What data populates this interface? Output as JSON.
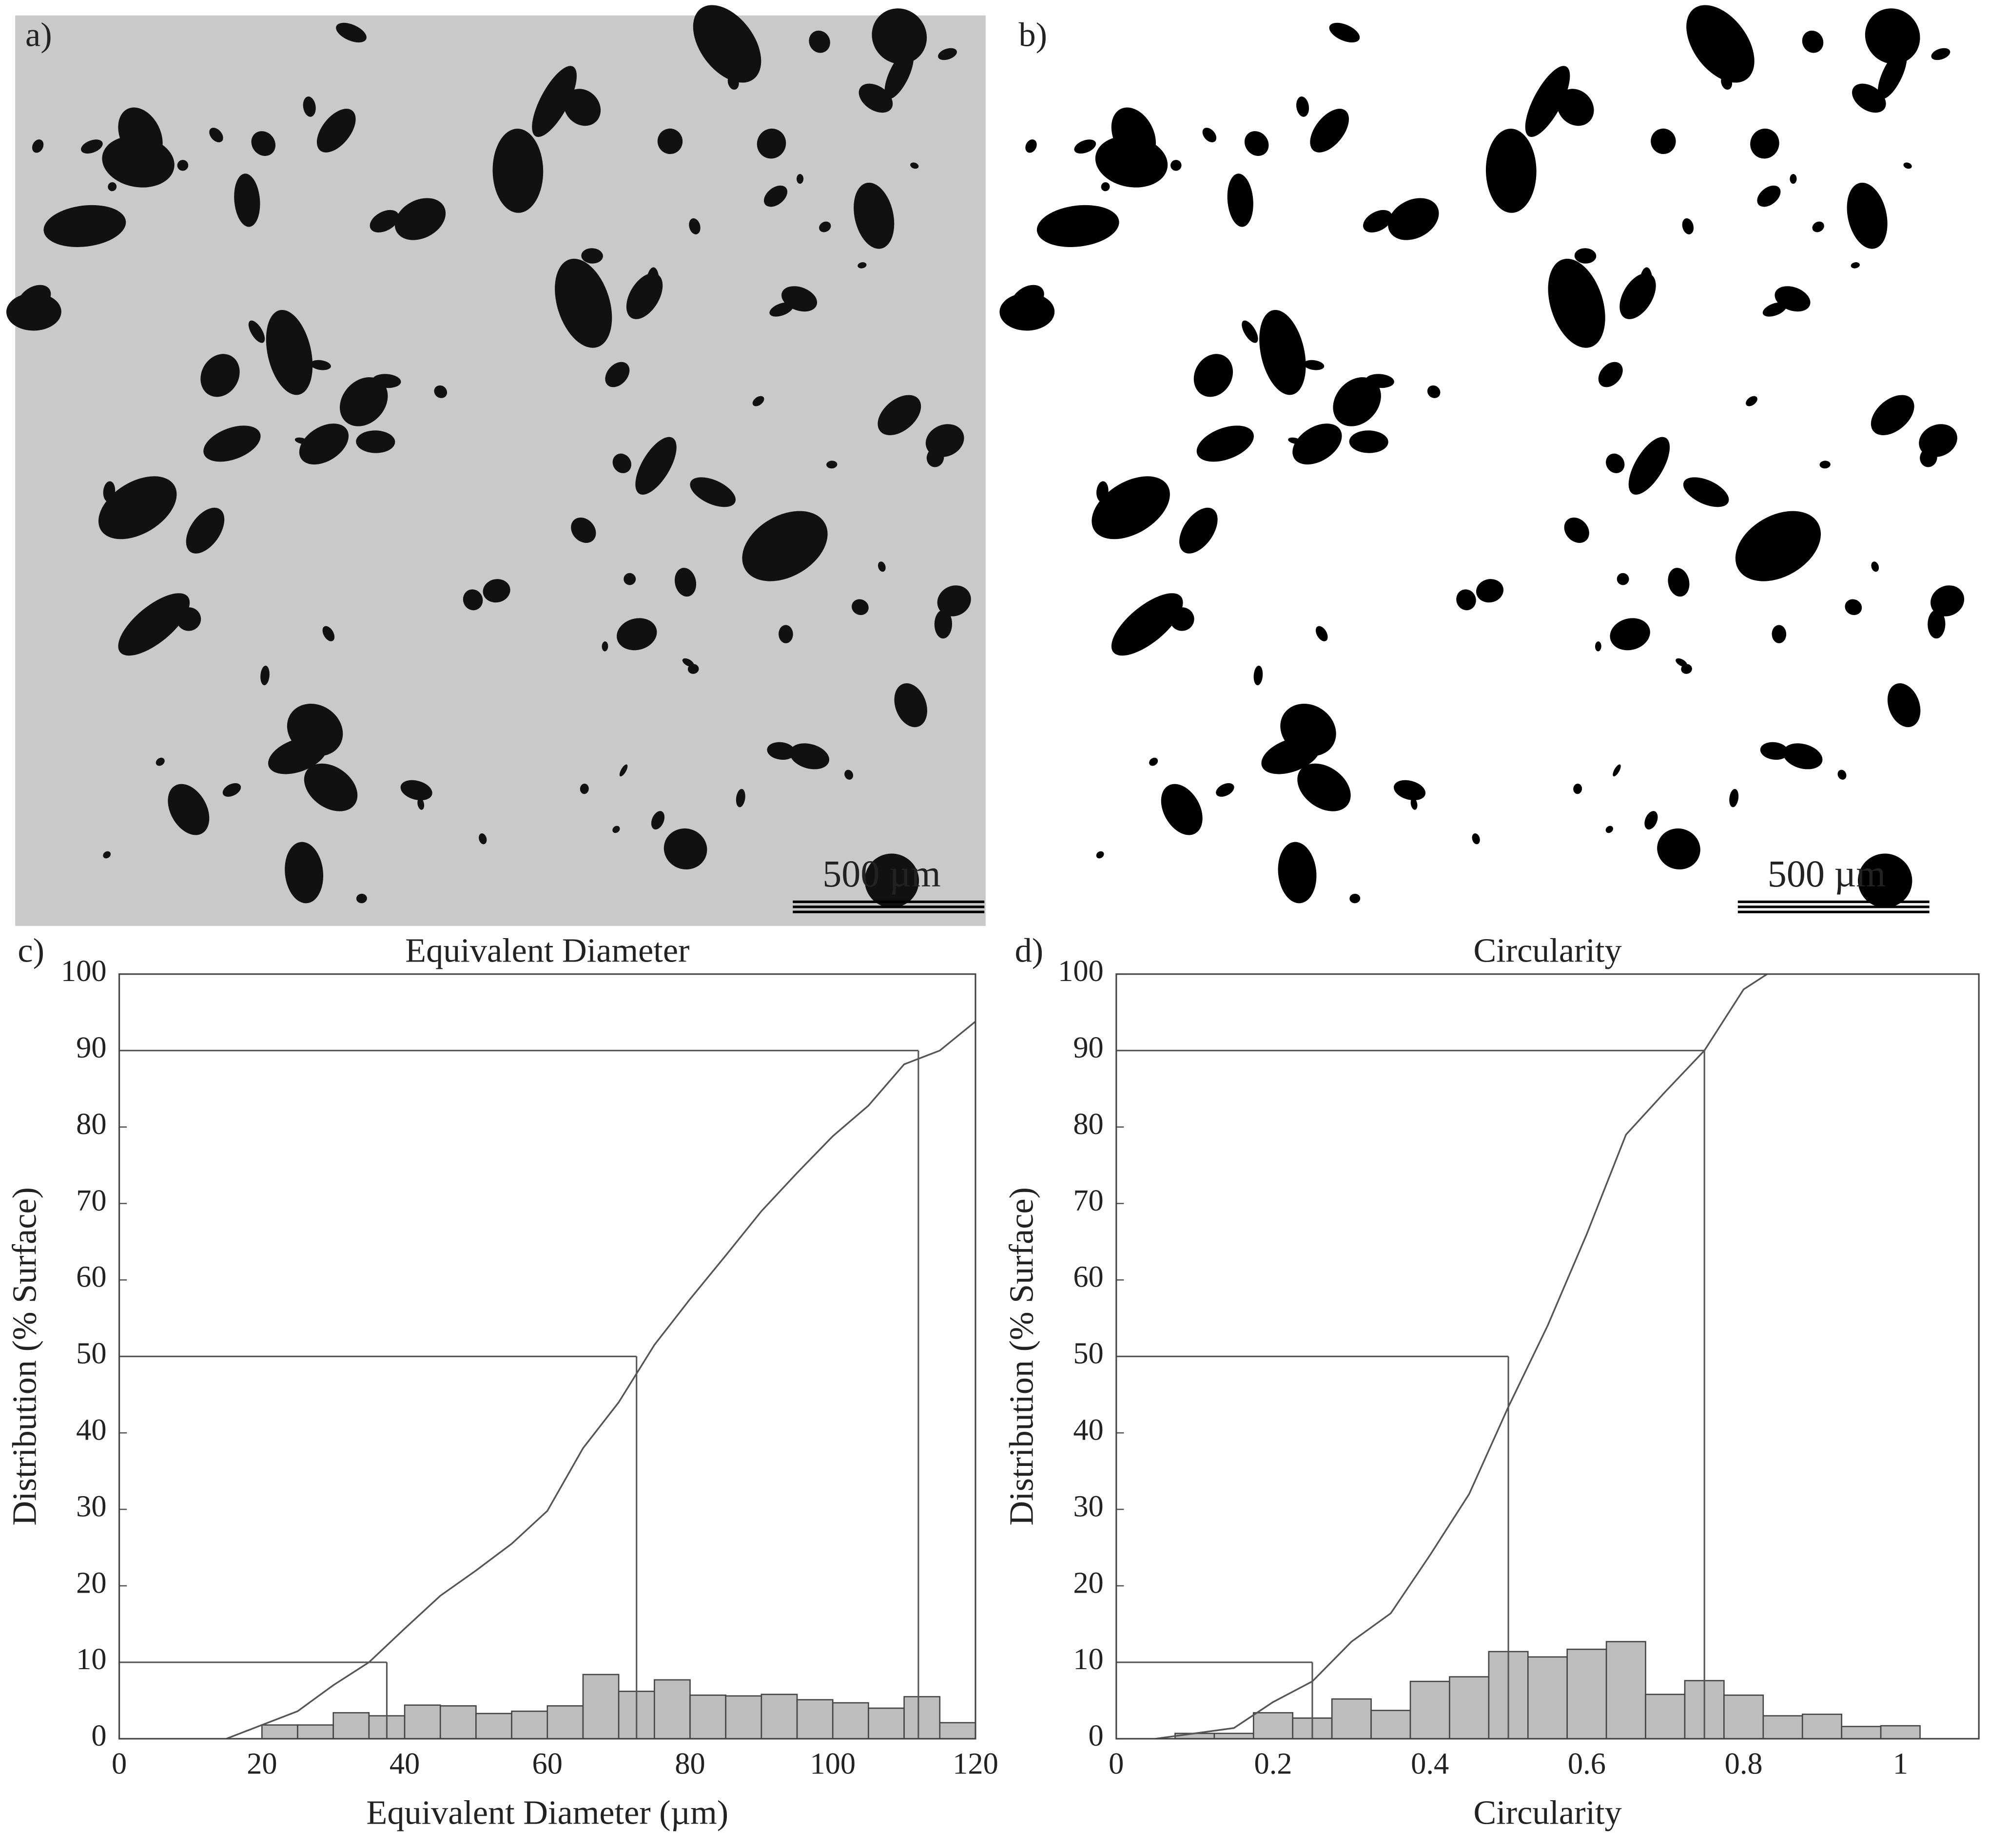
{
  "images": [
    {
      "label": "a)",
      "scale_bar": "500 µm"
    },
    {
      "label": "b)",
      "scale_bar": "500 µm"
    }
  ],
  "chart_data": [
    {
      "type": "histogram",
      "label": "c)",
      "title": "Equivalent Diameter",
      "x_label": "Equivalent Diameter (µm)",
      "y_label": "Distribution (% Surface)",
      "bins": [
        20,
        25,
        30,
        35,
        40,
        45,
        50,
        55,
        60,
        65,
        70,
        75,
        80,
        85,
        90,
        95,
        100,
        105,
        110,
        115,
        120
      ],
      "counts": [
        1.8,
        1.8,
        3.4,
        3.0,
        4.4,
        4.3,
        3.3,
        3.6,
        4.3,
        8.4,
        6.2,
        7.7,
        5.7,
        5.6,
        5.8,
        5.1,
        4.7,
        4.0,
        5.5,
        2.1
      ],
      "bar_color": "#bdbdbd",
      "cumulative": {
        "x": [
          15,
          20,
          25,
          30,
          35,
          40,
          45,
          50,
          55,
          60,
          65,
          70,
          75,
          80,
          85,
          90,
          95,
          100,
          105,
          110,
          115,
          120
        ],
        "y": [
          0,
          1.8,
          3.6,
          7,
          10,
          14.4,
          18.7,
          22,
          25.5,
          29.8,
          38,
          44,
          51.5,
          57.5,
          63.2,
          69,
          74,
          78.8,
          82.8,
          88.2,
          90,
          93.8
        ],
        "color": "#555555"
      },
      "percentiles": [
        {
          "y": 10,
          "x": 37.5
        },
        {
          "y": 50,
          "x": 72.5
        },
        {
          "y": 90,
          "x": 112
        }
      ],
      "xlim": [
        0,
        120
      ],
      "xticks": [
        0,
        20,
        40,
        60,
        80,
        100,
        120
      ],
      "ylim": [
        0,
        100
      ],
      "yticks": [
        0,
        10,
        20,
        30,
        40,
        50,
        60,
        70,
        80,
        90,
        100
      ]
    },
    {
      "type": "histogram",
      "label": "d)",
      "title": "Circularity",
      "x_label": "Circularity",
      "y_label": "Distribution (% Surface)",
      "bins": [
        0.075,
        0.125,
        0.175,
        0.225,
        0.275,
        0.325,
        0.375,
        0.425,
        0.475,
        0.525,
        0.575,
        0.625,
        0.675,
        0.725,
        0.775,
        0.825,
        0.875,
        0.925,
        0.975,
        1.025
      ],
      "counts": [
        0.7,
        0.7,
        3.4,
        2.7,
        5.2,
        3.7,
        7.5,
        8.1,
        11.4,
        10.7,
        11.7,
        12.7,
        5.8,
        7.6,
        5.7,
        3.0,
        3.2,
        1.6,
        1.7
      ],
      "bar_color": "#bdbdbd",
      "cumulative": {
        "x": [
          0.05,
          0.1,
          0.15,
          0.2,
          0.25,
          0.3,
          0.35,
          0.4,
          0.45,
          0.5,
          0.55,
          0.6,
          0.65,
          0.7,
          0.75,
          0.8,
          0.83
        ],
        "y": [
          0,
          0.7,
          1.4,
          4.8,
          7.5,
          12.7,
          16.4,
          24,
          32,
          43.4,
          54,
          66,
          79,
          84.6,
          90,
          98,
          100
        ],
        "color": "#555555"
      },
      "percentiles": [
        {
          "y": 10,
          "x": 0.25
        },
        {
          "y": 50,
          "x": 0.5
        },
        {
          "y": 90,
          "x": 0.75
        }
      ],
      "xlim": [
        0,
        1.1
      ],
      "xticks": [
        0,
        0.2,
        0.4,
        0.6,
        0.8,
        1
      ],
      "ylim": [
        0,
        100
      ],
      "yticks": [
        0,
        10,
        20,
        30,
        40,
        50,
        60,
        70,
        80,
        90,
        100
      ]
    }
  ]
}
